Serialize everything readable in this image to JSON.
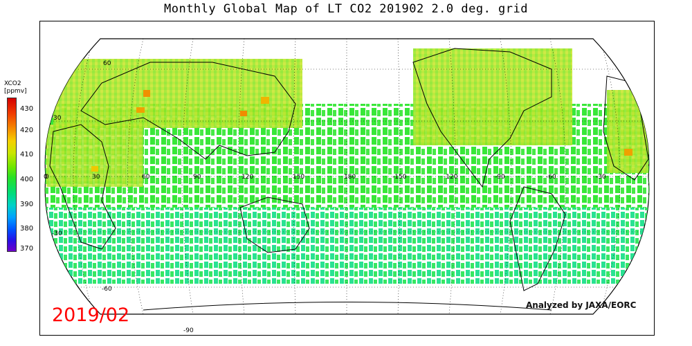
{
  "title": "Monthly Global Map of LT CO2 201902 2.0 deg. grid",
  "colorbar": {
    "label_line1": "XCO2",
    "label_line2": "[ppmv]",
    "ticks": [
      "430",
      "420",
      "410",
      "400",
      "390",
      "380",
      "370"
    ]
  },
  "map": {
    "projection": "robinson",
    "center_longitude": 180,
    "lat_labels": [
      "60",
      "30",
      "0",
      "-30",
      "-60",
      "-90"
    ],
    "lon_labels": [
      "0",
      "30",
      "60",
      "90",
      "120",
      "150",
      "180",
      "-150",
      "-120",
      "-90",
      "-60",
      "-30"
    ],
    "data_color_land_typical": "#a8e62a",
    "data_color_ocean_typical": "#28e628",
    "data_color_south_typical": "#00dca0"
  },
  "date_stamp": "2019/02",
  "credit": "Analyzed by JAXA/EORC"
}
